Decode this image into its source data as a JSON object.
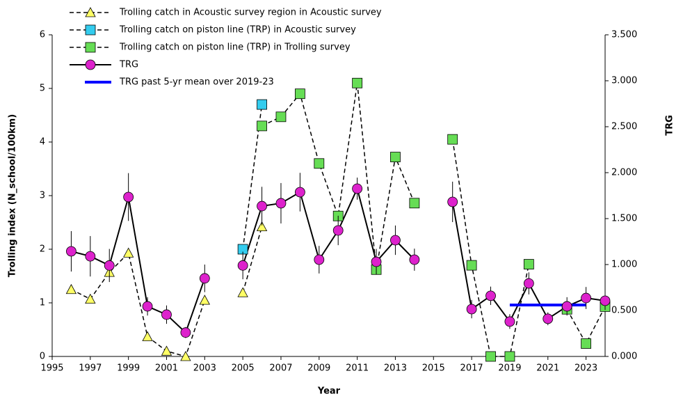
{
  "chart_data": {
    "type": "line",
    "xlabel": "Year",
    "ylabel": "Trolling index (N_school/100km)",
    "y2label": "TRG",
    "x": [
      1996,
      1997,
      1998,
      1999,
      2000,
      2001,
      2002,
      2003,
      2004,
      2005,
      2006,
      2007,
      2008,
      2009,
      2010,
      2011,
      2012,
      2013,
      2014,
      2015,
      2016,
      2017,
      2018,
      2019,
      2020,
      2021,
      2022,
      2023,
      2024
    ],
    "xlim": [
      1995,
      2024
    ],
    "xticks": [
      1995,
      1997,
      1999,
      2001,
      2003,
      2005,
      2007,
      2009,
      2011,
      2013,
      2015,
      2017,
      2019,
      2021,
      2023
    ],
    "ylim": [
      0,
      6
    ],
    "yticks": [
      0,
      1,
      2,
      3,
      4,
      5,
      6
    ],
    "y2lim": [
      0,
      3.5
    ],
    "y2ticks": [
      {
        "value": 0,
        "label": "0.000"
      },
      {
        "value": 0.5,
        "label": "0.500"
      },
      {
        "value": 1,
        "label": "1.000"
      },
      {
        "value": 1.5,
        "label": "1.500"
      },
      {
        "value": 2,
        "label": "2.000"
      },
      {
        "value": 2.5,
        "label": "2.500"
      },
      {
        "value": 3,
        "label": "3.000"
      },
      {
        "value": 3.5,
        "label": "3.500"
      }
    ],
    "series": [
      {
        "name": "Trolling catch in Acoustic survey region in Acoustic survey",
        "color": "#ffff66",
        "marker": "triangle",
        "dashed": true,
        "values": [
          1.25,
          1.07,
          1.57,
          1.93,
          0.37,
          0.1,
          0,
          1.05,
          null,
          1.19,
          2.42,
          null,
          null,
          null,
          null,
          null,
          null,
          null,
          null,
          null,
          null,
          null,
          null,
          null,
          null,
          null,
          null,
          null,
          null
        ]
      },
      {
        "name": "Trolling catch on piston line (TRP) in Acoustic survey",
        "color": "#33ccee",
        "marker": "square",
        "dashed": true,
        "values": [
          null,
          null,
          null,
          null,
          null,
          null,
          null,
          null,
          null,
          2.0,
          4.7,
          null,
          null,
          null,
          null,
          null,
          null,
          null,
          null,
          null,
          null,
          null,
          null,
          null,
          null,
          null,
          null,
          null,
          null
        ]
      },
      {
        "name": "Trolling catch on piston line (TRP) in Trolling survey",
        "color": "#66dd55",
        "marker": "square",
        "dashed": true,
        "values": [
          null,
          null,
          null,
          null,
          null,
          null,
          null,
          null,
          null,
          null,
          4.3,
          4.47,
          4.9,
          3.6,
          2.62,
          5.1,
          1.62,
          3.72,
          2.86,
          null,
          4.05,
          1.7,
          0,
          0,
          1.72,
          null,
          0.88,
          0.24,
          0.93
        ]
      },
      {
        "name": "TRG",
        "color": "#dd22cc",
        "marker": "circle",
        "dashed": false,
        "axis": "y2",
        "values": [
          1.144,
          1.09,
          0.99,
          1.735,
          0.545,
          0.455,
          0.26,
          0.85,
          null,
          0.99,
          1.636,
          1.667,
          1.788,
          1.053,
          1.371,
          1.826,
          1.03,
          1.265,
          1.053,
          null,
          1.682,
          0.515,
          0.66,
          0.38,
          0.795,
          0.41,
          0.545,
          0.636,
          0.606
        ],
        "errors": [
          0.22,
          0.22,
          0.18,
          0.26,
          0.1,
          0.1,
          0.06,
          0.15,
          null,
          0.15,
          0.21,
          0.22,
          0.21,
          0.15,
          0.16,
          0.12,
          0.14,
          0.16,
          0.12,
          null,
          0.22,
          0.1,
          0.1,
          0.08,
          0.12,
          0.07,
          0.1,
          0.12,
          0.1
        ]
      }
    ],
    "mean_line": {
      "name": "TRG past 5-yr mean over 2019-23",
      "color": "#0000ff",
      "x": [
        2019,
        2023
      ],
      "value": 0.56,
      "axis": "y2"
    }
  }
}
